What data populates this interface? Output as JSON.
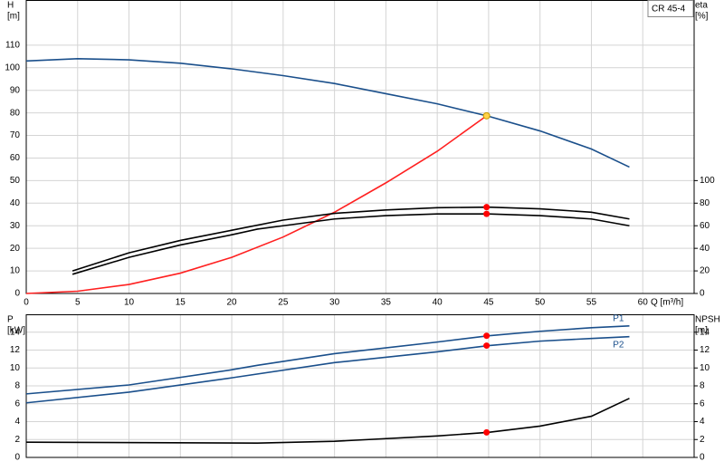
{
  "chart_data": [
    {
      "type": "line",
      "title": "CR 45-4",
      "ylabel": "H",
      "yunit": "[m]",
      "y2label": "eta",
      "y2unit": "[%]",
      "xlabel": "Q [m³/h]",
      "xlim": [
        0,
        65
      ],
      "xticks": [
        0,
        5,
        10,
        15,
        20,
        25,
        30,
        35,
        40,
        45,
        50,
        55,
        60
      ],
      "ylim": [
        0,
        130
      ],
      "yticks": [
        0,
        10,
        20,
        30,
        40,
        50,
        60,
        70,
        80,
        90,
        100,
        110
      ],
      "y2lim": [
        0,
        260
      ],
      "y2ticks": [
        0,
        20,
        40,
        60,
        80,
        100
      ],
      "grid": true,
      "series": [
        {
          "color": "#1a4f8b",
          "x": [
            0,
            5,
            10,
            15,
            20,
            22.5,
            25,
            30,
            35,
            40,
            45,
            50,
            55,
            58.7
          ],
          "values": [
            103,
            104,
            103.5,
            102,
            99.5,
            98,
            96.5,
            93,
            88.5,
            84,
            78.5,
            72,
            64,
            56
          ]
        },
        {
          "color": "#ff2020",
          "x": [
            0,
            5,
            10,
            15,
            20,
            25,
            30,
            35,
            40,
            44.8
          ],
          "values": [
            0,
            1,
            4,
            9,
            16,
            25,
            36,
            49,
            63,
            78.7
          ]
        },
        {
          "color": "#000000",
          "axis": "y2",
          "x": [
            4.5,
            10,
            15,
            20,
            25,
            30,
            35,
            40,
            45,
            50,
            55,
            58.7
          ],
          "values": [
            20,
            36,
            47,
            56,
            65,
            71,
            74,
            76,
            76.5,
            75,
            72,
            66
          ]
        },
        {
          "color": "#000000",
          "axis": "y2",
          "x": [
            4.5,
            10,
            15,
            20,
            22.5,
            25,
            30,
            35,
            40,
            45,
            50,
            55,
            58.7
          ],
          "values": [
            17,
            32,
            43,
            52,
            57,
            60,
            66,
            69,
            70.5,
            70.5,
            69,
            66,
            60
          ]
        }
      ],
      "points": [
        {
          "x": 44.8,
          "y": 78.7,
          "color": "#ffd24a"
        },
        {
          "x": 44.8,
          "y": 76.5,
          "color": "#ff0000",
          "axis": "y2"
        },
        {
          "x": 44.8,
          "y": 70.5,
          "color": "#ff0000",
          "axis": "y2"
        }
      ]
    },
    {
      "type": "line",
      "ylabel": "P",
      "yunit": "[kW]",
      "y2label": "NPSH",
      "y2unit": "[m]",
      "xlim": [
        0,
        65
      ],
      "xticks": [
        0,
        5,
        10,
        15,
        20,
        25,
        30,
        35,
        40,
        45,
        50,
        55,
        60
      ],
      "ylim": [
        0,
        16
      ],
      "yticks": [
        0,
        2,
        4,
        6,
        8,
        10,
        12,
        14
      ],
      "y2lim": [
        0,
        16
      ],
      "y2ticks": [
        0,
        2,
        4,
        6,
        8,
        10,
        12,
        14
      ],
      "grid": true,
      "series": [
        {
          "name": "P1",
          "color": "#1a4f8b",
          "x": [
            0,
            10,
            20,
            22.5,
            30,
            40,
            45,
            50,
            55,
            58.7
          ],
          "values": [
            7.1,
            8.1,
            9.8,
            10.3,
            11.6,
            12.9,
            13.6,
            14.1,
            14.5,
            14.7
          ]
        },
        {
          "name": "P2",
          "color": "#1a4f8b",
          "x": [
            0,
            10,
            20,
            30,
            40,
            45,
            50,
            55,
            58.7
          ],
          "values": [
            6.1,
            7.3,
            8.9,
            10.6,
            11.8,
            12.5,
            13,
            13.3,
            13.5
          ]
        },
        {
          "color": "#000000",
          "axis": "y2",
          "x": [
            0,
            22.5,
            30,
            40,
            45,
            50,
            55,
            58.7
          ],
          "values": [
            1.7,
            1.6,
            1.8,
            2.4,
            2.8,
            3.5,
            4.6,
            6.6
          ]
        }
      ],
      "points": [
        {
          "x": 44.8,
          "y": 13.6,
          "color": "#ff0000"
        },
        {
          "x": 44.8,
          "y": 12.5,
          "color": "#ff0000"
        },
        {
          "x": 44.8,
          "y": 2.8,
          "color": "#ff0000",
          "axis": "y2"
        }
      ]
    }
  ]
}
